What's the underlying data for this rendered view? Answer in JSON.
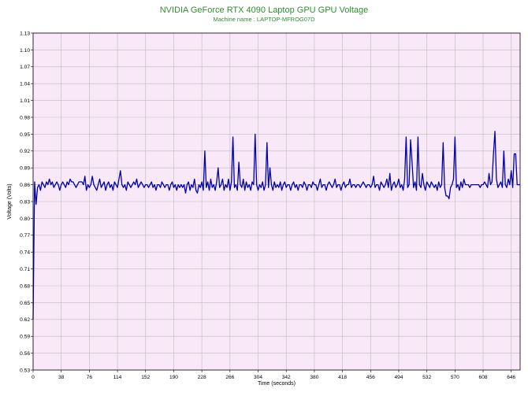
{
  "colors": {
    "title": "#2f8f2f",
    "series": "#0000a8",
    "plot_background": "#f8e8f8",
    "grid": "#bdbdbd",
    "axis": "#000000"
  },
  "chart_data": {
    "type": "line",
    "title": "NVIDIA GeForce RTX 4090 Laptop GPU GPU Voltage",
    "subtitle": "Machine name : LAPTOP-MFROG07D",
    "xlabel": "Time (seconds)",
    "ylabel": "Voltage (Volts)",
    "xlim": [
      0,
      658
    ],
    "ylim": [
      0.53,
      1.13
    ],
    "grid": true,
    "legend": "none",
    "xticks": [
      "0",
      "38",
      "76",
      "114",
      "152",
      "190",
      "228",
      "266",
      "304",
      "342",
      "380",
      "418",
      "456",
      "494",
      "532",
      "570",
      "608",
      "646"
    ],
    "yticks": [
      "0.53",
      "0.56",
      "0.59",
      "0.62",
      "0.65",
      "0.68",
      "0.71",
      "0.74",
      "0.77",
      "0.80",
      "0.83",
      "0.86",
      "0.89",
      "0.92",
      "0.95",
      "0.98",
      "1.01",
      "1.04",
      "1.07",
      "1.10",
      "1.13"
    ],
    "x": [
      0,
      2,
      4,
      6,
      8,
      10,
      12,
      14,
      16,
      18,
      20,
      22,
      24,
      26,
      28,
      30,
      32,
      34,
      36,
      38,
      40,
      42,
      44,
      46,
      48,
      50,
      52,
      54,
      56,
      58,
      60,
      62,
      64,
      66,
      68,
      70,
      72,
      74,
      76,
      78,
      80,
      82,
      84,
      86,
      88,
      90,
      92,
      94,
      96,
      98,
      100,
      102,
      104,
      106,
      108,
      110,
      112,
      114,
      116,
      118,
      120,
      122,
      124,
      126,
      128,
      130,
      132,
      134,
      136,
      138,
      140,
      142,
      144,
      146,
      148,
      150,
      152,
      154,
      156,
      158,
      160,
      162,
      164,
      166,
      168,
      170,
      172,
      174,
      176,
      178,
      180,
      182,
      184,
      186,
      188,
      190,
      192,
      194,
      196,
      198,
      200,
      202,
      204,
      206,
      208,
      210,
      212,
      214,
      216,
      218,
      220,
      222,
      224,
      226,
      228,
      230,
      232,
      234,
      236,
      238,
      240,
      242,
      244,
      246,
      248,
      250,
      252,
      254,
      256,
      258,
      260,
      262,
      264,
      266,
      268,
      270,
      272,
      274,
      276,
      278,
      280,
      282,
      284,
      286,
      288,
      290,
      292,
      294,
      296,
      298,
      300,
      302,
      304,
      306,
      308,
      310,
      312,
      314,
      316,
      318,
      320,
      322,
      324,
      326,
      328,
      330,
      332,
      334,
      336,
      338,
      340,
      342,
      344,
      346,
      348,
      350,
      352,
      354,
      356,
      358,
      360,
      362,
      364,
      366,
      368,
      370,
      372,
      374,
      376,
      378,
      380,
      382,
      384,
      386,
      388,
      390,
      392,
      394,
      396,
      398,
      400,
      402,
      404,
      406,
      408,
      410,
      412,
      414,
      416,
      418,
      420,
      422,
      424,
      426,
      428,
      430,
      432,
      434,
      436,
      438,
      440,
      442,
      444,
      446,
      448,
      450,
      452,
      454,
      456,
      458,
      460,
      462,
      464,
      466,
      468,
      470,
      472,
      474,
      476,
      478,
      480,
      482,
      484,
      486,
      488,
      490,
      492,
      494,
      496,
      498,
      500,
      502,
      504,
      506,
      508,
      510,
      512,
      514,
      516,
      518,
      520,
      522,
      524,
      526,
      528,
      530,
      532,
      534,
      536,
      538,
      540,
      542,
      544,
      546,
      548,
      550,
      552,
      554,
      556,
      558,
      560,
      562,
      564,
      566,
      568,
      570,
      572,
      574,
      576,
      578,
      580,
      582,
      584,
      586,
      588,
      590,
      592,
      594,
      596,
      598,
      600,
      602,
      604,
      606,
      608,
      610,
      612,
      614,
      616,
      618,
      620,
      622,
      624,
      626,
      628,
      630,
      632,
      634,
      636,
      638,
      640,
      642,
      644,
      646,
      648,
      650,
      652,
      654,
      656,
      658
    ],
    "series": [
      {
        "values": [
          0.62,
          0.865,
          0.825,
          0.855,
          0.86,
          0.85,
          0.865,
          0.86,
          0.855,
          0.865,
          0.86,
          0.87,
          0.86,
          0.865,
          0.855,
          0.86,
          0.865,
          0.86,
          0.85,
          0.86,
          0.865,
          0.86,
          0.855,
          0.865,
          0.86,
          0.87,
          0.865,
          0.865,
          0.86,
          0.855,
          0.86,
          0.865,
          0.865,
          0.865,
          0.86,
          0.875,
          0.85,
          0.86,
          0.855,
          0.86,
          0.875,
          0.86,
          0.855,
          0.85,
          0.86,
          0.87,
          0.855,
          0.86,
          0.865,
          0.85,
          0.86,
          0.865,
          0.855,
          0.86,
          0.85,
          0.865,
          0.86,
          0.855,
          0.87,
          0.885,
          0.86,
          0.855,
          0.86,
          0.85,
          0.865,
          0.86,
          0.855,
          0.86,
          0.865,
          0.86,
          0.87,
          0.855,
          0.86,
          0.865,
          0.86,
          0.855,
          0.86,
          0.86,
          0.855,
          0.86,
          0.865,
          0.855,
          0.86,
          0.85,
          0.86,
          0.86,
          0.855,
          0.865,
          0.86,
          0.855,
          0.86,
          0.86,
          0.85,
          0.86,
          0.865,
          0.855,
          0.86,
          0.85,
          0.86,
          0.855,
          0.86,
          0.855,
          0.86,
          0.845,
          0.86,
          0.865,
          0.85,
          0.86,
          0.855,
          0.87,
          0.85,
          0.845,
          0.86,
          0.855,
          0.865,
          0.85,
          0.92,
          0.855,
          0.865,
          0.85,
          0.87,
          0.855,
          0.86,
          0.85,
          0.865,
          0.89,
          0.855,
          0.86,
          0.87,
          0.85,
          0.86,
          0.855,
          0.87,
          0.85,
          0.865,
          0.945,
          0.855,
          0.86,
          0.85,
          0.9,
          0.86,
          0.855,
          0.87,
          0.85,
          0.865,
          0.855,
          0.86,
          0.85,
          0.865,
          0.86,
          0.95,
          0.86,
          0.85,
          0.86,
          0.855,
          0.865,
          0.85,
          0.86,
          0.935,
          0.855,
          0.89,
          0.86,
          0.85,
          0.865,
          0.855,
          0.86,
          0.855,
          0.865,
          0.85,
          0.86,
          0.865,
          0.855,
          0.86,
          0.86,
          0.85,
          0.86,
          0.865,
          0.855,
          0.86,
          0.85,
          0.86,
          0.86,
          0.855,
          0.865,
          0.86,
          0.85,
          0.86,
          0.86,
          0.855,
          0.865,
          0.86,
          0.86,
          0.85,
          0.86,
          0.87,
          0.855,
          0.86,
          0.86,
          0.85,
          0.86,
          0.865,
          0.86,
          0.855,
          0.86,
          0.87,
          0.855,
          0.86,
          0.86,
          0.85,
          0.86,
          0.865,
          0.855,
          0.86,
          0.86,
          0.87,
          0.855,
          0.86,
          0.86,
          0.855,
          0.86,
          0.86,
          0.855,
          0.86,
          0.865,
          0.86,
          0.855,
          0.86,
          0.86,
          0.855,
          0.86,
          0.875,
          0.855,
          0.86,
          0.86,
          0.85,
          0.865,
          0.86,
          0.855,
          0.86,
          0.87,
          0.855,
          0.88,
          0.85,
          0.86,
          0.865,
          0.855,
          0.86,
          0.87,
          0.855,
          0.86,
          0.85,
          0.87,
          0.945,
          0.855,
          0.86,
          0.94,
          0.9,
          0.855,
          0.865,
          0.85,
          0.945,
          0.86,
          0.855,
          0.88,
          0.86,
          0.85,
          0.865,
          0.86,
          0.855,
          0.865,
          0.86,
          0.855,
          0.86,
          0.85,
          0.865,
          0.855,
          0.86,
          0.935,
          0.855,
          0.84,
          0.84,
          0.835,
          0.855,
          0.86,
          0.87,
          0.945,
          0.855,
          0.86,
          0.85,
          0.865,
          0.855,
          0.87,
          0.86,
          0.86,
          0.86,
          0.855,
          0.86,
          0.86,
          0.86,
          0.86,
          0.86,
          0.86,
          0.855,
          0.86,
          0.86,
          0.865,
          0.86,
          0.855,
          0.88,
          0.86,
          0.865,
          0.915,
          0.955,
          0.87,
          0.855,
          0.86,
          0.865,
          0.855,
          0.92,
          0.86,
          0.855,
          0.87,
          0.86,
          0.885,
          0.855,
          0.915,
          0.915,
          0.86,
          0.86,
          0.86
        ]
      }
    ]
  }
}
